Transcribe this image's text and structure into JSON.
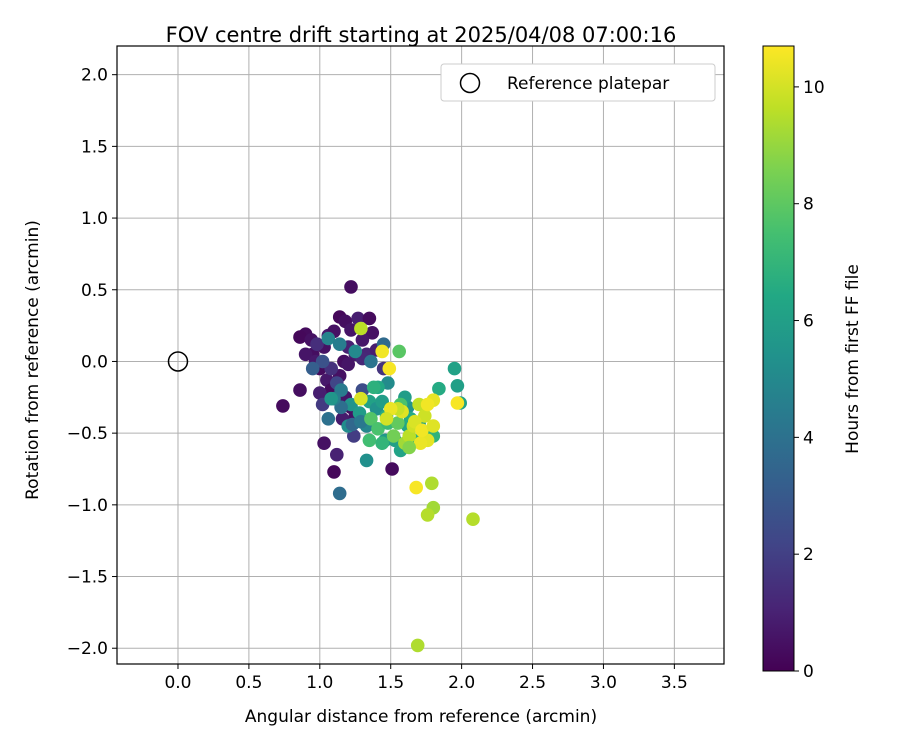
{
  "chart_data": {
    "type": "scatter",
    "title": "FOV centre drift starting at 2025/04/08 07:00:16",
    "xlabel": "Angular distance from reference (arcmin)",
    "ylabel": "Rotation from reference (arcmin)",
    "xlim": [
      -0.43,
      3.85
    ],
    "ylim": [
      -2.11,
      2.2
    ],
    "x_ticks": [
      0.0,
      0.5,
      1.0,
      1.5,
      2.0,
      2.5,
      3.0,
      3.5
    ],
    "y_ticks": [
      -2.0,
      -1.5,
      -1.0,
      -0.5,
      0.0,
      0.5,
      1.0,
      1.5,
      2.0
    ],
    "x_tick_labels": [
      "0.0",
      "0.5",
      "1.0",
      "1.5",
      "2.0",
      "2.5",
      "3.0",
      "3.5"
    ],
    "y_tick_labels": [
      "−2.0",
      "−1.5",
      "−1.0",
      "−0.5",
      "0.0",
      "0.5",
      "1.0",
      "1.5",
      "2.0"
    ],
    "grid": true,
    "legend": {
      "position": "top-right",
      "entries": [
        "Reference platepar"
      ]
    },
    "reference_point": {
      "x": 0.0,
      "y": 0.0,
      "name": "Reference platepar"
    },
    "colorbar": {
      "label": "Hours from first FF file",
      "range": [
        0,
        10.7
      ],
      "ticks": [
        0,
        2,
        4,
        6,
        8,
        10
      ],
      "colormap": "viridis"
    },
    "series": [
      {
        "points": [
          [
            1.22,
            0.52,
            0.4
          ],
          [
            0.9,
            0.19,
            0.3
          ],
          [
            0.86,
            0.17,
            0.2
          ],
          [
            0.94,
            0.15,
            0.5
          ],
          [
            0.95,
            0.05,
            0.4
          ],
          [
            0.9,
            0.05,
            0.6
          ],
          [
            0.97,
            0.0,
            0.7
          ],
          [
            1.0,
            -0.05,
            0.3
          ],
          [
            1.03,
            0.1,
            0.5
          ],
          [
            1.06,
            0.18,
            0.8
          ],
          [
            1.1,
            0.21,
            0.5
          ],
          [
            1.14,
            0.31,
            0.2
          ],
          [
            1.18,
            0.28,
            0.4
          ],
          [
            1.22,
            0.22,
            0.6
          ],
          [
            1.27,
            0.3,
            0.9
          ],
          [
            1.35,
            0.3,
            0.3
          ],
          [
            1.37,
            0.2,
            0.5
          ],
          [
            1.3,
            0.15,
            0.7
          ],
          [
            1.2,
            0.1,
            1.0
          ],
          [
            1.25,
            0.05,
            0.8
          ],
          [
            1.17,
            0.0,
            0.4
          ],
          [
            1.2,
            -0.02,
            0.6
          ],
          [
            1.33,
            0.05,
            1.1
          ],
          [
            1.4,
            0.08,
            0.9
          ],
          [
            1.14,
            -0.1,
            0.5
          ],
          [
            1.05,
            -0.13,
            0.7
          ],
          [
            1.08,
            -0.2,
            0.3
          ],
          [
            1.0,
            -0.22,
            0.9
          ],
          [
            1.18,
            -0.25,
            0.6
          ],
          [
            1.22,
            -0.32,
            0.4
          ],
          [
            1.16,
            -0.4,
            0.8
          ],
          [
            1.25,
            -0.38,
            0.5
          ],
          [
            0.86,
            -0.2,
            0.4
          ],
          [
            0.74,
            -0.31,
            0.3
          ],
          [
            1.03,
            -0.57,
            0.5
          ],
          [
            1.12,
            -0.65,
            1.0
          ],
          [
            1.1,
            -0.77,
            0.2
          ],
          [
            1.51,
            -0.75,
            0.3
          ],
          [
            1.3,
            0.02,
            1.2
          ],
          [
            1.45,
            -0.05,
            1.6
          ],
          [
            1.08,
            -0.05,
            1.5
          ],
          [
            0.98,
            0.12,
            1.4
          ],
          [
            1.02,
            -0.3,
            1.8
          ],
          [
            1.24,
            -0.52,
            1.9
          ],
          [
            1.12,
            -0.15,
            2.2
          ],
          [
            1.3,
            -0.2,
            2.5
          ],
          [
            1.02,
            0.0,
            2.7
          ],
          [
            0.95,
            -0.05,
            3.2
          ],
          [
            1.06,
            0.16,
            4.8
          ],
          [
            1.14,
            0.12,
            4.5
          ],
          [
            1.25,
            0.07,
            5.0
          ],
          [
            1.14,
            -0.92,
            3.8
          ],
          [
            1.06,
            -0.4,
            4.0
          ],
          [
            1.15,
            -0.2,
            4.4
          ],
          [
            1.22,
            -0.3,
            5.5
          ],
          [
            1.28,
            -0.36,
            5.8
          ],
          [
            1.35,
            -0.28,
            6.1
          ],
          [
            1.4,
            -0.33,
            5.4
          ],
          [
            1.33,
            -0.45,
            4.9
          ],
          [
            1.2,
            -0.45,
            5.2
          ],
          [
            1.15,
            -0.32,
            3.9
          ],
          [
            1.1,
            -0.26,
            4.6
          ],
          [
            1.08,
            -0.26,
            5.6
          ],
          [
            1.23,
            -0.44,
            3.6
          ],
          [
            1.29,
            -0.42,
            4.3
          ],
          [
            1.33,
            -0.69,
            5.3
          ],
          [
            1.36,
            0.0,
            4.1
          ],
          [
            1.45,
            0.12,
            3.7
          ],
          [
            1.48,
            -0.15,
            5.1
          ],
          [
            1.41,
            -0.18,
            6.4
          ],
          [
            1.44,
            -0.28,
            5.9
          ],
          [
            1.47,
            -0.38,
            6.6
          ],
          [
            1.46,
            -0.55,
            5.7
          ],
          [
            1.53,
            -0.55,
            6.0
          ],
          [
            1.57,
            -0.62,
            6.2
          ],
          [
            1.62,
            -0.45,
            6.3
          ],
          [
            1.66,
            -0.55,
            6.8
          ],
          [
            1.62,
            -0.32,
            5.5
          ],
          [
            1.6,
            -0.25,
            5.9
          ],
          [
            1.64,
            -0.4,
            6.5
          ],
          [
            1.7,
            -0.43,
            6.1
          ],
          [
            1.78,
            -0.5,
            6.3
          ],
          [
            1.8,
            -0.52,
            6.9
          ],
          [
            1.84,
            -0.19,
            6.5
          ],
          [
            1.95,
            -0.05,
            6.1
          ],
          [
            1.97,
            -0.17,
            6.0
          ],
          [
            1.99,
            -0.29,
            6.2
          ],
          [
            1.38,
            -0.18,
            6.8
          ],
          [
            1.36,
            -0.4,
            7.8
          ],
          [
            1.35,
            -0.55,
            7.4
          ],
          [
            1.41,
            -0.47,
            7.6
          ],
          [
            1.44,
            -0.57,
            7.0
          ],
          [
            1.48,
            -0.43,
            7.2
          ],
          [
            1.56,
            0.07,
            7.9
          ],
          [
            1.57,
            -0.3,
            7.6
          ],
          [
            1.55,
            -0.43,
            8.1
          ],
          [
            1.52,
            -0.52,
            8.4
          ],
          [
            1.6,
            -0.57,
            9.2
          ],
          [
            1.63,
            -0.52,
            9.6
          ],
          [
            1.66,
            -0.45,
            9.9
          ],
          [
            1.58,
            -0.35,
            10.2
          ],
          [
            1.55,
            -0.33,
            9.8
          ],
          [
            1.5,
            -0.33,
            10.4
          ],
          [
            1.47,
            -0.4,
            10.0
          ],
          [
            1.44,
            0.07,
            10.5
          ],
          [
            1.29,
            0.23,
            9.6
          ],
          [
            1.29,
            -0.26,
            10.1
          ],
          [
            1.49,
            -0.05,
            10.6
          ],
          [
            1.7,
            -0.3,
            9.7
          ],
          [
            1.74,
            -0.38,
            9.9
          ],
          [
            1.76,
            -0.55,
            10.3
          ],
          [
            1.71,
            -0.57,
            10.4
          ],
          [
            1.67,
            -0.42,
            10.1
          ],
          [
            1.72,
            -0.48,
            10.5
          ],
          [
            1.8,
            -0.45,
            10.2
          ],
          [
            1.8,
            -0.27,
            10.3
          ],
          [
            1.76,
            -0.3,
            10.5
          ],
          [
            1.97,
            -0.29,
            10.6
          ],
          [
            1.68,
            -0.88,
            10.6
          ],
          [
            1.79,
            -0.85,
            9.4
          ],
          [
            1.8,
            -1.02,
            9.2
          ],
          [
            1.76,
            -1.07,
            9.5
          ],
          [
            2.08,
            -1.1,
            9.5
          ],
          [
            1.69,
            -1.98,
            9.4
          ],
          [
            1.63,
            -0.6,
            8.7
          ]
        ]
      }
    ]
  }
}
